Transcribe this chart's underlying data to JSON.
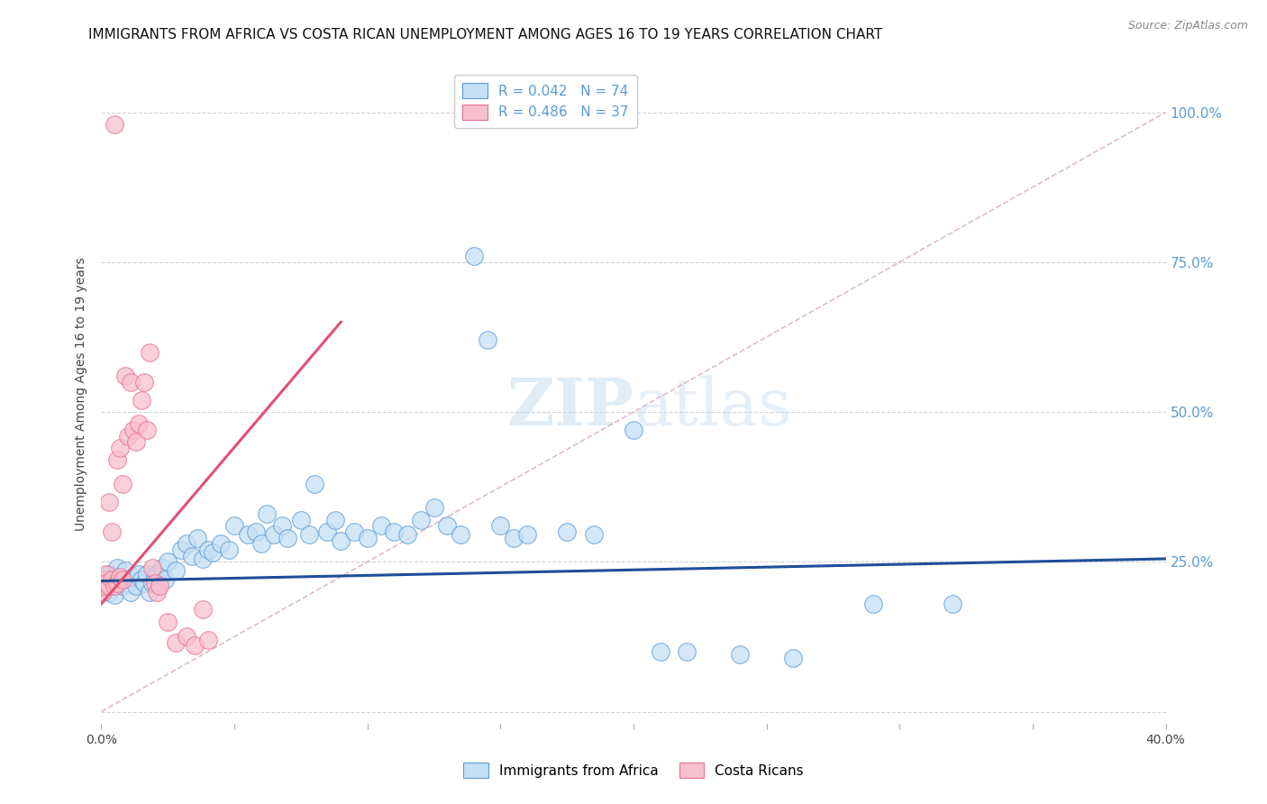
{
  "title": "IMMIGRANTS FROM AFRICA VS COSTA RICAN UNEMPLOYMENT AMONG AGES 16 TO 19 YEARS CORRELATION CHART",
  "source": "Source: ZipAtlas.com",
  "ylabel": "Unemployment Among Ages 16 to 19 years",
  "xlim": [
    0.0,
    0.4
  ],
  "ylim": [
    -0.02,
    1.08
  ],
  "right_yticks": [
    0.0,
    0.25,
    0.5,
    0.75,
    1.0
  ],
  "right_yticklabels": [
    "",
    "25.0%",
    "50.0%",
    "75.0%",
    "100.0%"
  ],
  "xtick_positions": [
    0.0,
    0.05,
    0.1,
    0.15,
    0.2,
    0.25,
    0.3,
    0.35,
    0.4
  ],
  "xticklabels": [
    "0.0%",
    "",
    "",
    "",
    "",
    "",
    "",
    "",
    "40.0%"
  ],
  "scatter_size": 200,
  "blue_color": "#5b9bd5",
  "blue_fill": "#c5dff5",
  "pink_color": "#e87090",
  "pink_fill": "#f8c0ce",
  "blue_line_color": "#1f4e99",
  "pink_line_color": "#e05075",
  "ref_line_color": "#d0a0b0",
  "grid_color": "#cccccc",
  "watermark_color": "#dce8f5",
  "background_color": "#ffffff",
  "legend_box_color": "#ffffff",
  "title_fontsize": 11,
  "source_fontsize": 9,
  "axis_label_fontsize": 10,
  "tick_fontsize": 10,
  "legend_fontsize": 11,
  "blue_scatter_x": [
    0.001,
    0.002,
    0.003,
    0.003,
    0.004,
    0.005,
    0.005,
    0.006,
    0.007,
    0.008,
    0.009,
    0.01,
    0.011,
    0.012,
    0.013,
    0.014,
    0.015,
    0.016,
    0.017,
    0.018,
    0.019,
    0.02,
    0.021,
    0.022,
    0.023,
    0.024,
    0.025,
    0.028,
    0.03,
    0.032,
    0.034,
    0.036,
    0.038,
    0.04,
    0.042,
    0.045,
    0.048,
    0.05,
    0.055,
    0.058,
    0.06,
    0.062,
    0.065,
    0.068,
    0.07,
    0.075,
    0.078,
    0.08,
    0.085,
    0.088,
    0.09,
    0.095,
    0.1,
    0.105,
    0.11,
    0.115,
    0.12,
    0.125,
    0.13,
    0.135,
    0.14,
    0.145,
    0.15,
    0.155,
    0.16,
    0.175,
    0.185,
    0.2,
    0.21,
    0.22,
    0.24,
    0.26,
    0.29,
    0.32
  ],
  "blue_scatter_y": [
    0.22,
    0.21,
    0.2,
    0.23,
    0.215,
    0.195,
    0.225,
    0.24,
    0.22,
    0.21,
    0.235,
    0.215,
    0.2,
    0.225,
    0.21,
    0.23,
    0.22,
    0.215,
    0.23,
    0.2,
    0.215,
    0.225,
    0.23,
    0.215,
    0.24,
    0.22,
    0.25,
    0.235,
    0.27,
    0.28,
    0.26,
    0.29,
    0.255,
    0.27,
    0.265,
    0.28,
    0.27,
    0.31,
    0.295,
    0.3,
    0.28,
    0.33,
    0.295,
    0.31,
    0.29,
    0.32,
    0.295,
    0.38,
    0.3,
    0.32,
    0.285,
    0.3,
    0.29,
    0.31,
    0.3,
    0.295,
    0.32,
    0.34,
    0.31,
    0.295,
    0.76,
    0.62,
    0.31,
    0.29,
    0.295,
    0.3,
    0.295,
    0.47,
    0.1,
    0.1,
    0.095,
    0.09,
    0.18,
    0.18
  ],
  "pink_scatter_x": [
    0.0005,
    0.001,
    0.001,
    0.002,
    0.002,
    0.003,
    0.003,
    0.004,
    0.004,
    0.005,
    0.005,
    0.006,
    0.006,
    0.007,
    0.007,
    0.008,
    0.008,
    0.009,
    0.01,
    0.011,
    0.012,
    0.013,
    0.014,
    0.015,
    0.016,
    0.017,
    0.018,
    0.019,
    0.02,
    0.021,
    0.022,
    0.025,
    0.028,
    0.032,
    0.035,
    0.038,
    0.04
  ],
  "pink_scatter_y": [
    0.2,
    0.22,
    0.21,
    0.23,
    0.215,
    0.35,
    0.21,
    0.3,
    0.22,
    0.98,
    0.21,
    0.42,
    0.215,
    0.44,
    0.225,
    0.38,
    0.22,
    0.56,
    0.46,
    0.55,
    0.47,
    0.45,
    0.48,
    0.52,
    0.55,
    0.47,
    0.6,
    0.24,
    0.215,
    0.2,
    0.21,
    0.15,
    0.115,
    0.125,
    0.11,
    0.17,
    0.12
  ],
  "blue_trend_x0": 0.0,
  "blue_trend_x1": 0.4,
  "blue_trend_y0": 0.218,
  "blue_trend_y1": 0.255,
  "pink_trend_x0": 0.0,
  "pink_trend_x1": 0.09,
  "pink_trend_y0": 0.18,
  "pink_trend_y1": 0.65,
  "ref_line_x0": 0.0,
  "ref_line_x1": 0.4,
  "ref_line_y0": 0.0,
  "ref_line_y1": 1.0
}
